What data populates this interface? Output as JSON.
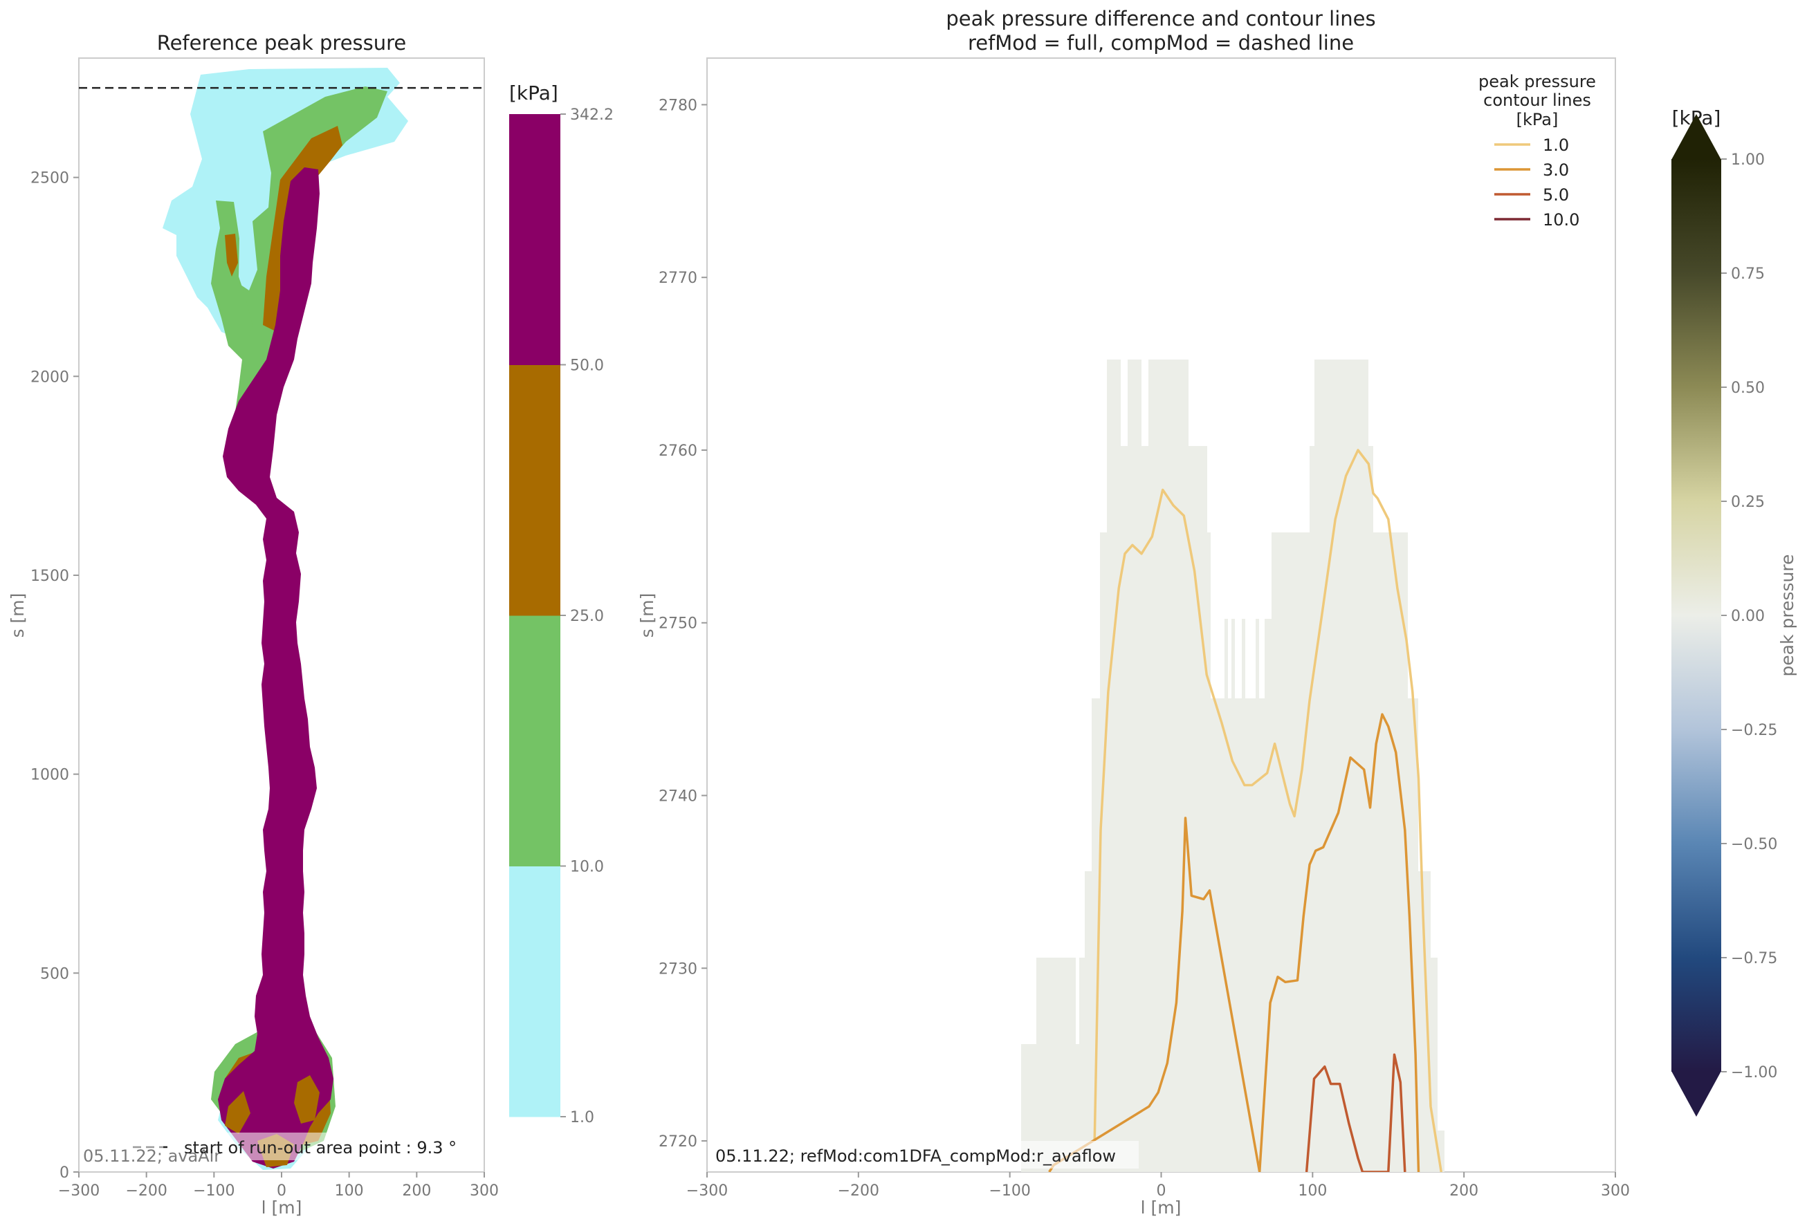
{
  "chart_data": [
    {
      "type": "heatmap",
      "title": "Reference peak pressure",
      "xlabel": "l [m]",
      "ylabel": "s [m]",
      "xlim": [
        -300,
        300
      ],
      "ylim": [
        0,
        2800
      ],
      "xticks": [
        "−300",
        "−200",
        "−100",
        "0",
        "100",
        "200",
        "300"
      ],
      "xtick_values": [
        -300,
        -200,
        -100,
        0,
        100,
        200,
        300
      ],
      "yticks": [
        "0",
        "500",
        "1000",
        "1500",
        "2000",
        "2500"
      ],
      "ytick_values": [
        0,
        500,
        1000,
        1500,
        2000,
        2500
      ],
      "grid": false,
      "colorbar": {
        "unit": "[kPa]",
        "levels": [
          1.0,
          10.0,
          25.0,
          50.0,
          342.2
        ],
        "level_labels": [
          "1.0",
          "10.0",
          "25.0",
          "50.0",
          "342.2"
        ],
        "colors": [
          "#aff2f7",
          "#74c365",
          "#a86b00",
          "#8a0066"
        ]
      },
      "dashed_line": {
        "s": 2725
      },
      "legend": {
        "label": "start of run-out area point : 9.3 °",
        "placement": "bottom"
      },
      "annotation": "05.11.22; avaAlr"
    },
    {
      "type": "heatmap",
      "title": "peak pressure difference and contour lines",
      "subtitle": "refMod = full, compMod = dashed line",
      "xlabel": "l [m]",
      "ylabel": "s [m]",
      "xlim": [
        -300,
        300
      ],
      "ylim": [
        2718.2,
        2782.7
      ],
      "xticks": [
        "−300",
        "−200",
        "−100",
        "0",
        "100",
        "200",
        "300"
      ],
      "xtick_values": [
        -300,
        -200,
        -100,
        0,
        100,
        200,
        300
      ],
      "yticks": [
        "2720",
        "2730",
        "2740",
        "2750",
        "2760",
        "2770",
        "2780"
      ],
      "ytick_values": [
        2720,
        2730,
        2740,
        2750,
        2760,
        2770,
        2780
      ],
      "grid": false,
      "legend": {
        "title": "peak pressure\ncontour lines\n[kPa]",
        "placement": "top-right",
        "entries": [
          "1.0",
          "3.0",
          "5.0",
          "10.0"
        ],
        "colors": [
          "#efc97b",
          "#dc9535",
          "#c05a30",
          "#7d2a34"
        ]
      },
      "colorbar": {
        "unit": "[kPa]",
        "label": "peak pressure",
        "min": -1.0,
        "max": 1.0,
        "ticks": [
          "−1.00",
          "−0.75",
          "−0.50",
          "−0.25",
          "0.00",
          "0.25",
          "0.50",
          "0.75",
          "1.00"
        ],
        "tick_values": [
          -1.0,
          -0.75,
          -0.5,
          -0.25,
          0.0,
          0.25,
          0.5,
          0.75,
          1.0
        ],
        "colors": [
          "#231a45",
          "#22497e",
          "#5a86b4",
          "#b2c4da",
          "#eceee8",
          "#d6d4a3",
          "#8c8a55",
          "#47492a",
          "#202205"
        ]
      },
      "difference_value": 0.0,
      "series": [
        {
          "name": "1.0",
          "x": [
            -44,
            -40,
            -35,
            -28,
            -24,
            -19,
            -13,
            -6,
            1,
            8,
            15,
            22,
            30,
            40,
            47,
            55,
            60,
            70,
            75,
            85,
            88,
            93,
            98,
            107,
            115,
            122,
            130,
            137,
            140,
            143,
            150,
            156,
            162,
            166,
            170,
            173,
            178,
            185
          ],
          "y": [
            2720,
            2738,
            2746,
            2752,
            2754,
            2754.5,
            2754,
            2755,
            2757.7,
            2756.8,
            2756.2,
            2753,
            2747,
            2744.2,
            2742,
            2740.6,
            2740.6,
            2741.3,
            2743,
            2739.5,
            2738.8,
            2741.5,
            2745.5,
            2751,
            2756,
            2758.5,
            2760,
            2759.2,
            2757.5,
            2757.2,
            2756,
            2752,
            2749,
            2746,
            2741,
            2733,
            2722,
            2718.2
          ]
        },
        {
          "name": "3.0",
          "x": [
            -74,
            -71,
            -8,
            -2,
            4,
            10,
            14,
            16,
            20,
            28,
            32,
            35,
            65,
            72,
            77,
            82,
            90,
            94,
            98,
            102,
            107,
            112,
            117,
            125,
            134,
            138,
            142,
            146,
            150,
            155,
            161,
            164,
            168,
            170
          ],
          "y": [
            2718.2,
            2718.6,
            2722,
            2722.8,
            2724.5,
            2728,
            2733.3,
            2738.7,
            2734.2,
            2734,
            2734.5,
            2733,
            2718.2,
            2728,
            2729.5,
            2729.2,
            2729.3,
            2733,
            2736,
            2736.8,
            2737,
            2738,
            2739,
            2742.2,
            2741.5,
            2739.3,
            2743,
            2744.7,
            2744,
            2742.5,
            2738,
            2733,
            2725,
            2718.2
          ]
        },
        {
          "name": "5.0",
          "x": [
            96,
            101,
            108,
            112,
            118,
            124,
            130,
            133,
            150,
            154,
            158,
            161
          ],
          "y": [
            2718.2,
            2723.6,
            2724.3,
            2723.3,
            2723.3,
            2721,
            2719,
            2718.2,
            2718.2,
            2725,
            2723.4,
            2718.2
          ]
        }
      ],
      "annotation": "05.11.22; refMod:com1DFA_compMod:r_avaflow"
    }
  ]
}
